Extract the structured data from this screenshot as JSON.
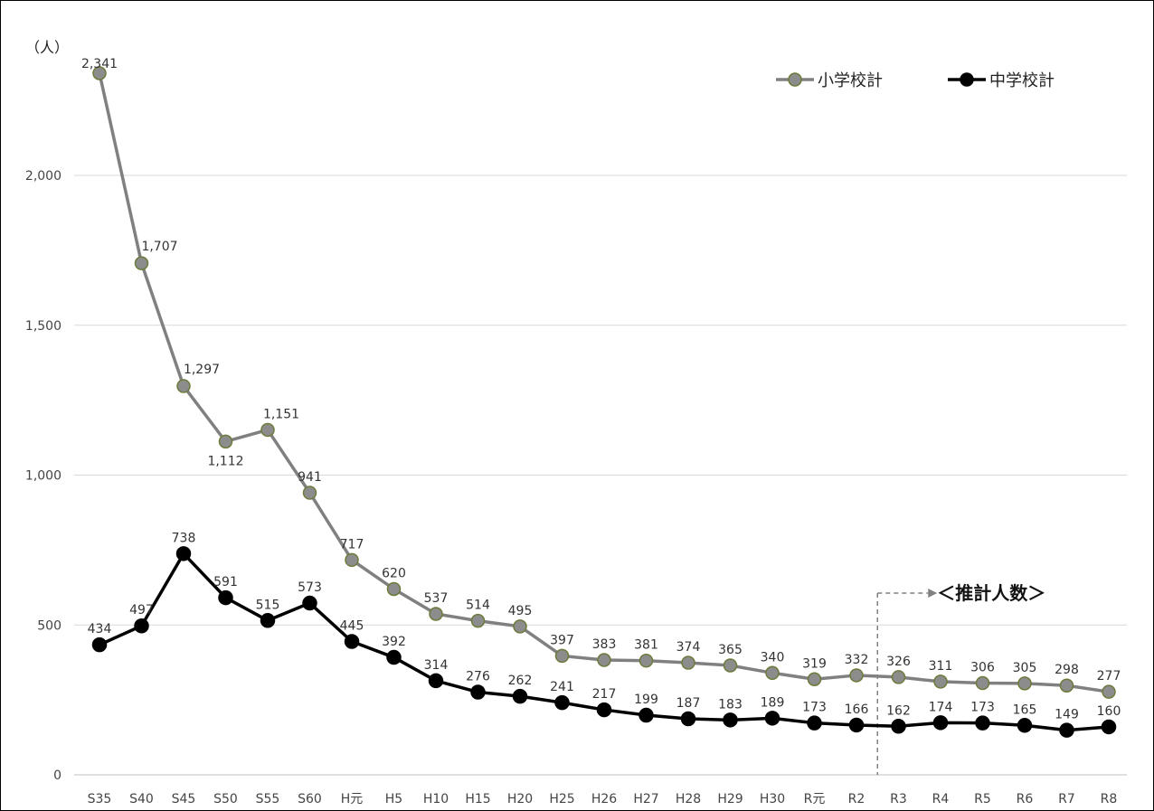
{
  "chart_data": {
    "type": "line",
    "y_unit": "（人）",
    "categories": [
      "S35",
      "S40",
      "S45",
      "S50",
      "S55",
      "S60",
      "H元",
      "H5",
      "H10",
      "H15",
      "H20",
      "H25",
      "H26",
      "H27",
      "H28",
      "H29",
      "H30",
      "R元",
      "R2",
      "R3",
      "R4",
      "R5",
      "R6",
      "R7",
      "R8"
    ],
    "series": [
      {
        "name": "小学校計",
        "color": "#808080",
        "marker_fill": "#8c8c8c",
        "marker_stroke": "#6b7b3a",
        "values": [
          2341,
          1707,
          1297,
          1112,
          1151,
          941,
          717,
          620,
          537,
          514,
          495,
          397,
          383,
          381,
          374,
          365,
          340,
          319,
          332,
          326,
          311,
          306,
          305,
          298,
          277
        ],
        "value_labels": [
          "2,341",
          "1,707",
          "1,297",
          "1,112",
          "1,151",
          "941",
          "717",
          "620",
          "537",
          "514",
          "495",
          "397",
          "383",
          "381",
          "374",
          "365",
          "340",
          "319",
          "332",
          "326",
          "311",
          "306",
          "305",
          "298",
          "277"
        ]
      },
      {
        "name": "中学校計",
        "color": "#000000",
        "marker_fill": "#000000",
        "marker_stroke": "#000000",
        "values": [
          434,
          497,
          738,
          591,
          515,
          573,
          445,
          392,
          314,
          276,
          262,
          241,
          217,
          199,
          187,
          183,
          189,
          173,
          166,
          162,
          174,
          173,
          165,
          149,
          160
        ],
        "value_labels": [
          "434",
          "497",
          "738",
          "591",
          "515",
          "573",
          "445",
          "392",
          "314",
          "276",
          "262",
          "241",
          "217",
          "199",
          "187",
          "183",
          "189",
          "173",
          "166",
          "162",
          "174",
          "173",
          "165",
          "149",
          "160"
        ]
      }
    ],
    "y_ticks": [
      0,
      500,
      1000,
      1500,
      2000
    ],
    "y_tick_labels": [
      "0",
      "500",
      "1,000",
      "1,500",
      "2,000"
    ],
    "ylim": [
      0,
      2400
    ],
    "grid": "horizontal",
    "legend_position": "top-right",
    "annotation": {
      "text": "＜推計人数＞",
      "divider_after_category": "R2"
    }
  }
}
